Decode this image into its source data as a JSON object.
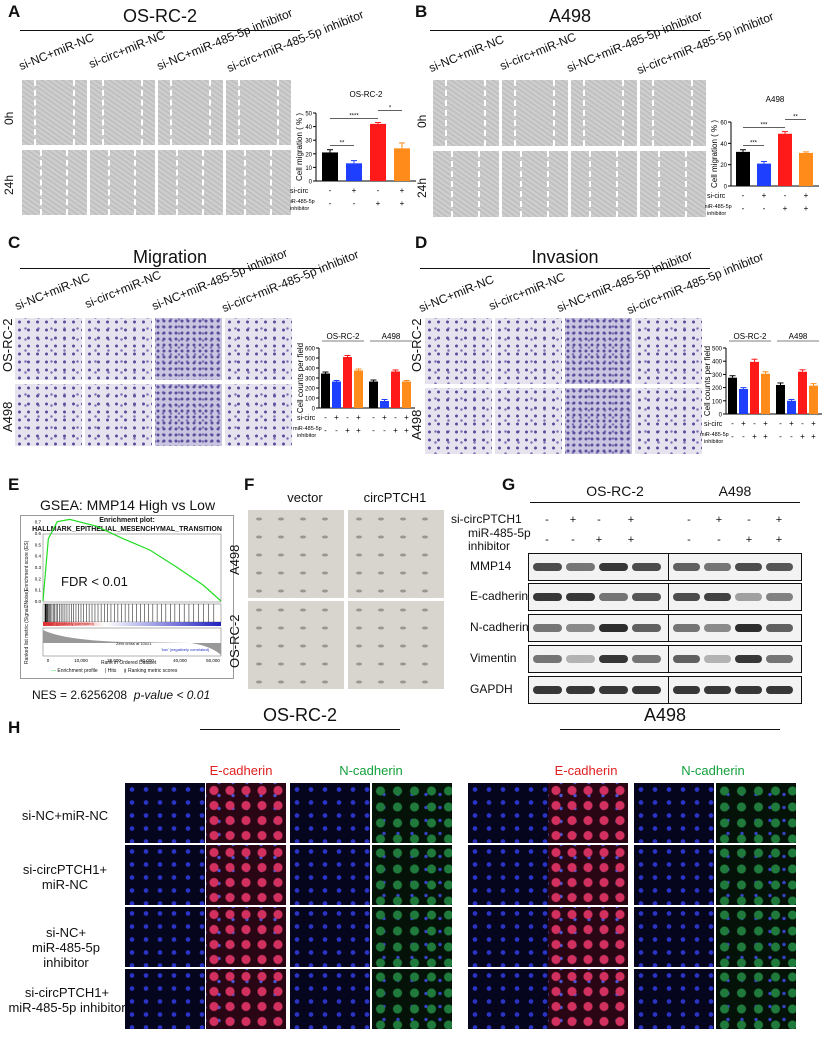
{
  "panels": {
    "A": {
      "label": "A",
      "title": "OS-RC-2",
      "cols": [
        "si-NC+miR-NC",
        "si-circ+miR-NC",
        "si-NC+miR-485-5p inhibitor",
        "si-circ+miR-485-5p inhibitor"
      ],
      "rows": [
        "0h",
        "24h"
      ],
      "chart_title": "OS-RC-2",
      "ylabel": "Cell migration ( % )"
    },
    "B": {
      "label": "B",
      "title": "A498",
      "cols": [
        "si-NC+miR-NC",
        "si-circ+miR-NC",
        "si-NC+miR-485-5p inhibitor",
        "si-circ+miR-485-5p inhibitor"
      ],
      "rows": [
        "0h",
        "24h"
      ],
      "chart_title": "A498",
      "ylabel": "Cell migration ( % )"
    },
    "C": {
      "label": "C",
      "title": "Migration",
      "cols": [
        "si-NC+miR-NC",
        "si-circ+miR-NC",
        "si-NC+miR-485-5p inhibitor",
        "si-circ+miR-485-5p inhibitor"
      ],
      "rows": [
        "OS-RC-2",
        "A498"
      ],
      "ylabel": "Cell counts per field",
      "group1": "OS-RC-2",
      "group2": "A498"
    },
    "D": {
      "label": "D",
      "title": "Invasion",
      "cols": [
        "si-NC+miR-NC",
        "si-circ+miR-NC",
        "si-NC+miR-485-5p inhibitor",
        "si-circ+miR-485-5p inhibitor"
      ],
      "rows": [
        "OS-RC-2",
        "A498"
      ],
      "ylabel": "Cell counts per field",
      "group1": "OS-RC-2",
      "group2": "A498"
    },
    "E": {
      "label": "E",
      "title": "GSEA: MMP14 High vs  Low",
      "plot_title": "Enrichment plot:",
      "geneset": "HALLMARK_EPITHELIAL_MESENCHYMAL_TRANSITION",
      "fdr": "FDR < 0.01",
      "nes": "NES = 2.6256208",
      "pval": "p-value < 0.01",
      "es_label": "Enrichment score (ES)",
      "rank_label": "Ranked list metric (Signal2Noise)",
      "x_label": "Rank in Ordered Dataset",
      "legend": [
        "Enrichment profile",
        "Hits",
        "Ranking metric scores"
      ],
      "pos_note": "'High' (positively correlated)",
      "neg_note": "'low' (negatively correlated)",
      "zero_note": "Zero cross at 10021"
    },
    "F": {
      "label": "F",
      "cols": [
        "vector",
        "circPTCH1"
      ],
      "rows": [
        "A498",
        "OS-RC-2"
      ]
    },
    "G": {
      "label": "G",
      "group1": "OS-RC-2",
      "group2": "A498",
      "row_sicirc": "si-circPTCH1",
      "row_mir": "miR-485-5p inhibitor",
      "sicirc_signs": [
        "-",
        "+",
        "-",
        "+"
      ],
      "mir_signs": [
        "-",
        "-",
        "+",
        "+"
      ],
      "proteins": [
        "MMP14",
        "E-cadherin",
        "N-cadherin",
        "Vimentin",
        "GAPDH"
      ]
    },
    "H": {
      "label": "H",
      "group1": "OS-RC-2",
      "group2": "A498",
      "stain1": "E-cadherin",
      "stain2": "N-cadherin",
      "rows": [
        "si-NC+miR-NC",
        "si-circPTCH1+\nmiR-NC",
        "si-NC+\nmiR-485-5p inhibitor",
        "si-circPTCH1+\nmiR-485-5p inhibitor"
      ]
    }
  },
  "treatment_rows": {
    "sicirc": "si-circ",
    "mir": "miR-485-5p",
    "inhib": "inhibitor",
    "signs_sicirc": [
      "-",
      "+",
      "-",
      "+"
    ],
    "signs_mir": [
      "-",
      "-",
      "+",
      "+"
    ]
  },
  "colors": {
    "c1": "#000000",
    "c2": "#1f3fff",
    "c3": "#ff1a1a",
    "c4": "#ff8c1a",
    "green_curve": "#22dd22",
    "red_text": "#e02020",
    "green_text": "#14a03c"
  },
  "chart_data": [
    {
      "type": "bar",
      "title": "OS-RC-2",
      "ylabel": "Cell migration ( % )",
      "ylim": [
        0,
        50
      ],
      "yticks": [
        0,
        10,
        20,
        30,
        40,
        50
      ],
      "categories": [
        "si-NC+miR-NC",
        "si-circ+miR-NC",
        "si-NC+miR-485-5p inhibitor",
        "si-circ+miR-485-5p inhibitor"
      ],
      "values": [
        21,
        13,
        42,
        24
      ],
      "errors": [
        2,
        2,
        1,
        4
      ],
      "significance": [
        "**",
        "****",
        "*"
      ]
    },
    {
      "type": "bar",
      "title": "A498",
      "ylabel": "Cell migration ( % )",
      "ylim": [
        0,
        60
      ],
      "yticks": [
        0,
        20,
        40,
        60
      ],
      "categories": [
        "si-NC+miR-NC",
        "si-circ+miR-NC",
        "si-NC+miR-485-5p inhibitor",
        "si-circ+miR-485-5p inhibitor"
      ],
      "values": [
        32,
        21,
        49,
        31
      ],
      "errors": [
        2,
        2,
        2,
        1
      ],
      "significance": [
        "***",
        "***",
        "**"
      ]
    },
    {
      "type": "bar",
      "title": "Migration",
      "ylabel": "Cell counts per field",
      "ylim": [
        0,
        600
      ],
      "yticks": [
        0,
        100,
        200,
        300,
        400,
        500,
        600
      ],
      "groups": [
        "OS-RC-2",
        "A498"
      ],
      "series": [
        {
          "values": [
            345,
            265,
            510,
            375
          ]
        },
        {
          "values": [
            265,
            70,
            365,
            265
          ]
        }
      ],
      "errors": [
        [
          15,
          10,
          15,
          15
        ],
        [
          15,
          15,
          15,
          10
        ]
      ]
    },
    {
      "type": "bar",
      "title": "Invasion",
      "ylabel": "Cell counts per field",
      "ylim": [
        0,
        500
      ],
      "yticks": [
        0,
        100,
        200,
        300,
        400,
        500
      ],
      "groups": [
        "OS-RC-2",
        "A498"
      ],
      "series": [
        {
          "values": [
            275,
            190,
            395,
            305
          ]
        },
        {
          "values": [
            220,
            100,
            320,
            215
          ]
        }
      ],
      "errors": [
        [
          15,
          10,
          20,
          15
        ],
        [
          15,
          10,
          15,
          15
        ]
      ]
    }
  ]
}
